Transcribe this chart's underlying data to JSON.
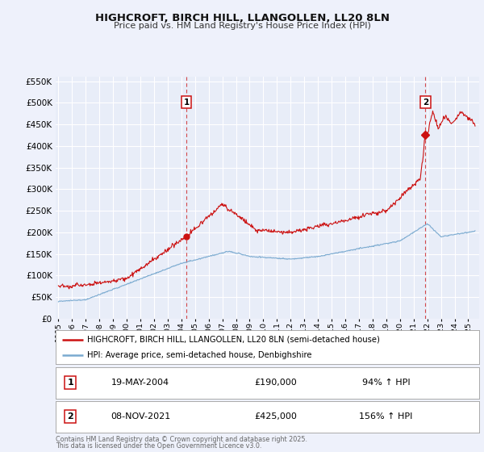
{
  "title": "HIGHCROFT, BIRCH HILL, LLANGOLLEN, LL20 8LN",
  "subtitle": "Price paid vs. HM Land Registry's House Price Index (HPI)",
  "bg_color": "#eef1fb",
  "plot_bg_color": "#e8edf8",
  "grid_color": "#ffffff",
  "hpi_color": "#7aaad0",
  "price_color": "#cc1111",
  "sale1_x": 2004.37,
  "sale1_y": 190000,
  "sale2_x": 2021.86,
  "sale2_y": 425000,
  "xlim": [
    1994.8,
    2025.8
  ],
  "ylim": [
    0,
    560000
  ],
  "yticks": [
    0,
    50000,
    100000,
    150000,
    200000,
    250000,
    300000,
    350000,
    400000,
    450000,
    500000,
    550000
  ],
  "xtick_years": [
    1995,
    1996,
    1997,
    1998,
    1999,
    2000,
    2001,
    2002,
    2003,
    2004,
    2005,
    2006,
    2007,
    2008,
    2009,
    2010,
    2011,
    2012,
    2013,
    2014,
    2015,
    2016,
    2017,
    2018,
    2019,
    2020,
    2021,
    2022,
    2023,
    2024,
    2025
  ],
  "legend_price": "HIGHCROFT, BIRCH HILL, LLANGOLLEN, LL20 8LN (semi-detached house)",
  "legend_hpi": "HPI: Average price, semi-detached house, Denbighshire",
  "ann1_num": "1",
  "ann1_date": "19-MAY-2004",
  "ann1_price": "£190,000",
  "ann1_hpi": "94% ↑ HPI",
  "ann2_num": "2",
  "ann2_date": "08-NOV-2021",
  "ann2_price": "£425,000",
  "ann2_hpi": "156% ↑ HPI",
  "footer1": "Contains HM Land Registry data © Crown copyright and database right 2025.",
  "footer2": "This data is licensed under the Open Government Licence v3.0."
}
